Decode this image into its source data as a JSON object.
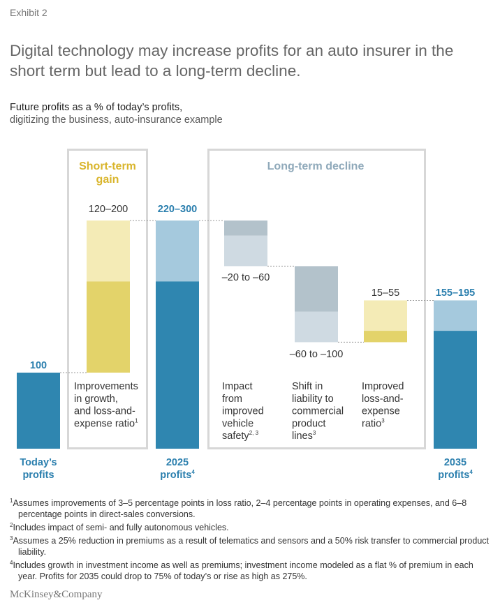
{
  "exhibit": "Exhibit 2",
  "title": "Digital technology may increase profits for an auto insurer in the short term but lead to a long-term decline.",
  "subtitle_bold": "Future profits as a % of today’s profits,",
  "subtitle": "digitizing the business, auto-insurance example",
  "colors": {
    "dark_blue": "#2f86b0",
    "light_blue": "#a5c9dd",
    "dark_gray": "#b3c2cb",
    "light_gray": "#cfdae2",
    "dark_yellow": "#e3d36a",
    "light_yellow": "#f4ebb6",
    "box_border": "#d7d7d7",
    "short_term_label": "#d9b52c",
    "long_term_label": "#8fa9ba",
    "value_blue": "#2b7fae"
  },
  "chart_data": {
    "type": "waterfall",
    "unit": "% of today’s profits",
    "groups": [
      {
        "label": "Short-term gain",
        "label_lines": [
          "Short-term",
          "gain"
        ]
      },
      {
        "label": "Long-term decline"
      }
    ],
    "bars": [
      {
        "key": "today",
        "kind": "total",
        "value": 100,
        "value_label": "100",
        "label_lines": [
          "Today’s",
          "profits"
        ]
      },
      {
        "key": "improvements",
        "kind": "increase",
        "range": [
          120,
          200
        ],
        "value_label": "120–200",
        "label_lines": [
          "Improvements",
          "in growth,",
          "and loss-and-",
          "expense ratio"
        ],
        "footnote": "1"
      },
      {
        "key": "p2025",
        "kind": "total",
        "range": [
          220,
          300
        ],
        "value_label": "220–300",
        "label_lines": [
          "2025",
          "profits"
        ],
        "footnote": "4"
      },
      {
        "key": "safety",
        "kind": "decrease",
        "range": [
          -20,
          -60
        ],
        "value_label": "–20 to –60",
        "label_lines": [
          "Impact",
          "from",
          "improved",
          "vehicle",
          "safety"
        ],
        "footnote": "2, 3"
      },
      {
        "key": "liability",
        "kind": "decrease",
        "range": [
          -60,
          -100
        ],
        "value_label": "–60 to –100",
        "label_lines": [
          "Shift in",
          "liability to",
          "commercial",
          "product",
          "lines"
        ],
        "footnote": "3"
      },
      {
        "key": "ratio",
        "kind": "increase",
        "range": [
          15,
          55
        ],
        "value_label": "15–55",
        "label_lines": [
          "Improved",
          "loss-and-",
          "expense",
          "ratio"
        ],
        "footnote": "3"
      },
      {
        "key": "p2035",
        "kind": "total",
        "range": [
          155,
          195
        ],
        "value_label": "155–195",
        "label_lines": [
          "2035",
          "profits"
        ],
        "footnote": "4"
      }
    ]
  },
  "footnotes": [
    {
      "mark": "1",
      "text": "Assumes improvements of 3–5 percentage points in loss ratio, 2–4 percentage points in operating expenses, and 6–8 percentage points in direct-sales conversions."
    },
    {
      "mark": "2",
      "text": "Includes impact of semi- and fully autonomous vehicles."
    },
    {
      "mark": "3",
      "text": "Assumes a 25% reduction in premiums as a result of telematics and sensors and a 50% risk transfer to commercial product liability."
    },
    {
      "mark": "4",
      "text": "Includes growth in investment income as well as premiums; investment income modeled as a flat % of premium in each year. Profits for 2035 could drop to 75% of today’s or rise as high as 275%."
    }
  ],
  "brand": "McKinsey&Company"
}
